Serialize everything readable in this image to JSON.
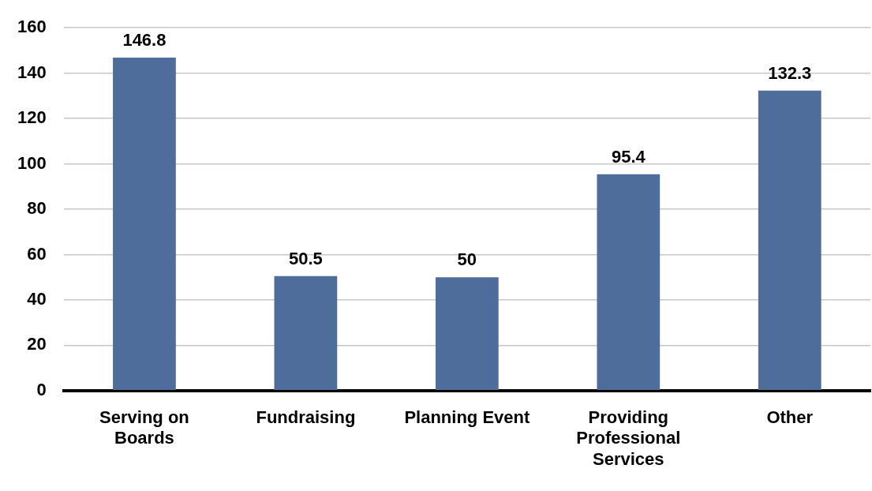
{
  "chart_data": {
    "type": "bar",
    "categories": [
      "Serving on Boards",
      "Fundraising",
      "Planning Event",
      "Providing Professional Services",
      "Other"
    ],
    "values": [
      146.8,
      50.5,
      50,
      95.4,
      132.3
    ],
    "color": "#4f6d9b",
    "ylim": [
      0,
      160
    ],
    "yticks": [
      0,
      20,
      40,
      60,
      80,
      100,
      120,
      140,
      160
    ],
    "grid": "y",
    "data_labels": true,
    "legend": false
  }
}
